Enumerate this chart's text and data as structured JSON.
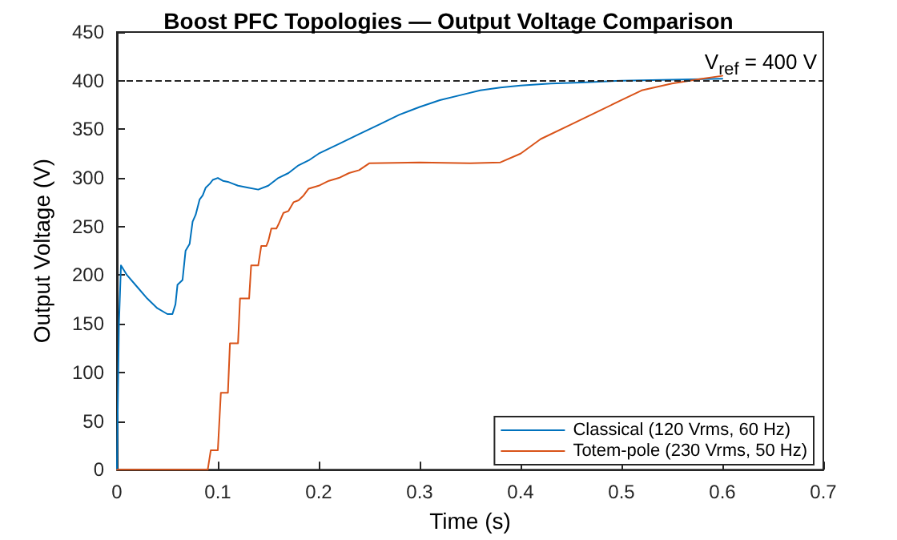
{
  "chart_data": {
    "type": "line",
    "title": "Boost PFC Topologies — Output Voltage Comparison",
    "xlabel": "Time (s)",
    "ylabel": "Output Voltage (V)",
    "xlim": [
      0,
      0.7
    ],
    "xticks": [
      0,
      0.1,
      0.2,
      0.3,
      0.4,
      0.5,
      0.6,
      0.7
    ],
    "ylim": [
      0,
      450
    ],
    "yticks": [
      0,
      50,
      100,
      150,
      200,
      250,
      300,
      350,
      400,
      450
    ],
    "grid": false,
    "legend": "bottom right",
    "marker": "none",
    "line_style": "solid",
    "ref_lines": [
      {
        "axis": "y",
        "value": 400,
        "label": "V$_{ref}$ = 400 V",
        "color": "#262626",
        "line_style": "dashed"
      }
    ],
    "series": [
      {
        "name": "Classical (120 Vrms, 60 Hz)",
        "color": "#0072bd",
        "x": [
          0,
          0.002,
          0.004,
          0.01,
          0.02,
          0.03,
          0.04,
          0.05,
          0.055,
          0.058,
          0.06,
          0.065,
          0.068,
          0.072,
          0.075,
          0.078,
          0.082,
          0.085,
          0.088,
          0.092,
          0.095,
          0.1,
          0.105,
          0.11,
          0.115,
          0.12,
          0.13,
          0.14,
          0.15,
          0.16,
          0.17,
          0.18,
          0.19,
          0.2,
          0.22,
          0.24,
          0.26,
          0.28,
          0.3,
          0.32,
          0.34,
          0.36,
          0.38,
          0.4,
          0.43,
          0.46,
          0.5,
          0.55,
          0.6
        ],
        "values": [
          0,
          150,
          210,
          200,
          188,
          176,
          166,
          160,
          160,
          170,
          190,
          195,
          225,
          232,
          255,
          262,
          278,
          282,
          290,
          294,
          298,
          300,
          297,
          296,
          294,
          292,
          290,
          288,
          292,
          300,
          305,
          313,
          318,
          325,
          335,
          345,
          355,
          365,
          373,
          380,
          385,
          390,
          393,
          395,
          397,
          398,
          400,
          401,
          402
        ]
      },
      {
        "name": "Totem-pole (230 Vrms, 50 Hz)",
        "color": "#d95319",
        "x": [
          0,
          0.09,
          0.093,
          0.095,
          0.1,
          0.103,
          0.106,
          0.11,
          0.112,
          0.116,
          0.12,
          0.122,
          0.127,
          0.131,
          0.133,
          0.138,
          0.14,
          0.143,
          0.148,
          0.15,
          0.153,
          0.158,
          0.16,
          0.165,
          0.17,
          0.175,
          0.18,
          0.185,
          0.19,
          0.2,
          0.21,
          0.22,
          0.23,
          0.24,
          0.25,
          0.3,
          0.35,
          0.38,
          0.4,
          0.42,
          0.45,
          0.48,
          0.5,
          0.52,
          0.55,
          0.58,
          0.6
        ],
        "values": [
          0,
          0,
          20,
          20,
          20,
          79,
          79,
          79,
          130,
          130,
          130,
          176,
          176,
          176,
          210,
          210,
          210,
          230,
          230,
          235,
          248,
          248,
          252,
          264,
          266,
          275,
          277,
          282,
          289,
          292,
          297,
          300,
          305,
          308,
          315,
          316,
          315,
          316,
          325,
          340,
          355,
          370,
          380,
          390,
          397,
          402,
          405
        ]
      }
    ]
  }
}
